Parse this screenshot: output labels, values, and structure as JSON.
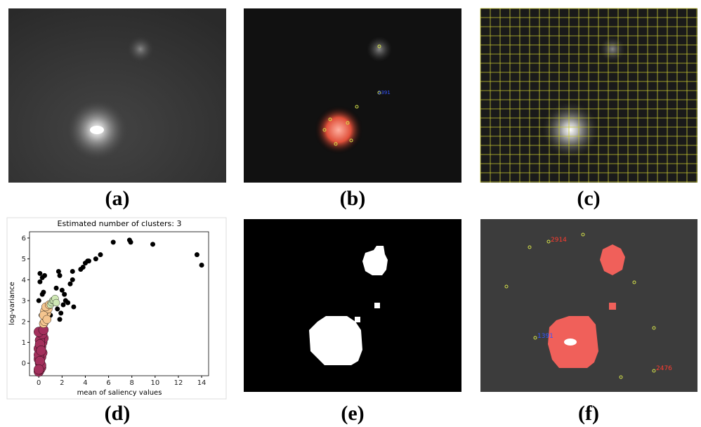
{
  "panels": {
    "labels": [
      "(a)",
      "(b)",
      "(c)",
      "(d)",
      "(e)",
      "(f)"
    ]
  },
  "annotations_b": [
    {
      "text": "2391",
      "color": "#3355ff"
    }
  ],
  "annotations_f": [
    {
      "text": "2914",
      "color": "#ff3b2f"
    },
    {
      "text": "2476",
      "color": "#ff3b2f"
    },
    {
      "text": "1391",
      "color": "#3355ff"
    }
  ],
  "chart_data": {
    "type": "scatter",
    "title": "Estimated number of clusters: 3",
    "x_label": "mean of saliency values",
    "y_label": "log-variance",
    "xlim": [
      -0.8,
      14.6
    ],
    "ylim": [
      -0.6,
      6.3
    ],
    "xticks": [
      0,
      2,
      4,
      6,
      8,
      10,
      12,
      14
    ],
    "yticks": [
      0,
      1,
      2,
      3,
      4,
      5,
      6
    ],
    "series": [
      {
        "color": "#000000",
        "marker_size": 3.5,
        "x": [
          0.1,
          0.3,
          0.4,
          0.1,
          0.3,
          0.5,
          1.0,
          1.5,
          1.7,
          1.8,
          2.0,
          2.2,
          2.3,
          1.9,
          2.1,
          2.5,
          2.7,
          2.9,
          3.0,
          2.9,
          3.6,
          3.8,
          4.0,
          4.2,
          4.3,
          4.9,
          5.3,
          6.4,
          7.8,
          7.9,
          9.8,
          13.6,
          14.0,
          0.2,
          0.6,
          0.1,
          1.0,
          1.2,
          0.0,
          1.8,
          1.6
        ],
        "y": [
          4.3,
          3.3,
          3.4,
          3.9,
          4.1,
          4.2,
          2.9,
          3.6,
          4.4,
          4.2,
          3.5,
          3.3,
          3.0,
          2.4,
          2.8,
          2.9,
          3.8,
          4.4,
          2.7,
          4.0,
          4.5,
          4.6,
          4.8,
          4.9,
          4.9,
          5.0,
          5.2,
          5.8,
          5.9,
          5.8,
          5.7,
          5.2,
          4.7,
          2.3,
          1.9,
          1.3,
          2.3,
          2.9,
          3.0,
          2.1,
          2.6
        ]
      },
      {
        "color": "#a3305c",
        "marker_size": 7,
        "x": [
          0.0,
          0.1,
          0.2,
          0.1,
          0.0,
          0.2,
          0.3,
          0.1,
          0.0,
          0.2,
          0.3,
          0.4,
          0.1,
          0.0,
          0.2,
          0.1,
          0.3,
          0.0,
          0.1,
          0.2,
          0.4,
          0.0
        ],
        "y": [
          -0.4,
          -0.3,
          -0.2,
          0.0,
          0.2,
          0.3,
          0.5,
          0.6,
          0.7,
          0.8,
          1.0,
          1.2,
          1.1,
          0.4,
          -0.1,
          0.9,
          1.4,
          1.5,
          0.1,
          0.6,
          1.6,
          -0.3
        ]
      },
      {
        "color": "#f5c58f",
        "marker_size": 6,
        "x": [
          0.4,
          0.5,
          0.6,
          0.7,
          0.5,
          0.8,
          0.6,
          0.9,
          0.4,
          0.7
        ],
        "y": [
          1.9,
          2.0,
          2.2,
          2.4,
          2.5,
          2.6,
          2.7,
          2.8,
          2.3,
          2.1
        ]
      },
      {
        "color": "#cfe8b5",
        "marker_size": 5,
        "x": [
          1.0,
          1.1,
          1.2,
          1.3,
          1.4,
          1.5
        ],
        "y": [
          2.8,
          2.9,
          3.0,
          3.0,
          3.1,
          2.9
        ]
      }
    ]
  }
}
